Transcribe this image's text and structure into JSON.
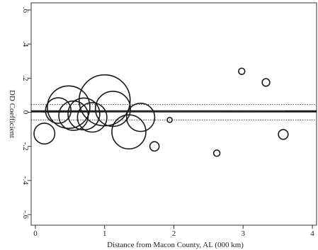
{
  "chart_data": {
    "type": "scatter",
    "title": "",
    "xlabel": "Distance from Macon County, AL (000 km)",
    "ylabel": "DD Coefficient",
    "xlim": [
      0,
      4
    ],
    "ylim": [
      -0.6,
      0.6
    ],
    "x_ticks": [
      "0",
      "1",
      "2",
      "3",
      "4"
    ],
    "x_tick_values": [
      0,
      1,
      2,
      3,
      4
    ],
    "y_ticks": [
      "-.6",
      "-.4",
      "-.2",
      "0",
      ".2",
      ".4",
      ".6"
    ],
    "y_tick_values": [
      -0.6,
      -0.4,
      -0.2,
      0,
      0.2,
      0.4,
      0.6
    ],
    "grid": false,
    "legend": "none",
    "marker_size_note": "circle area proportional to weight",
    "points": [
      {
        "x": 0.13,
        "y": -0.125,
        "weight": 6
      },
      {
        "x": 0.33,
        "y": 0.01,
        "weight": 9
      },
      {
        "x": 0.48,
        "y": 0.03,
        "weight": 25
      },
      {
        "x": 0.55,
        "y": -0.02,
        "weight": 12
      },
      {
        "x": 0.7,
        "y": -0.01,
        "weight": 14
      },
      {
        "x": 0.82,
        "y": -0.03,
        "weight": 12
      },
      {
        "x": 1.0,
        "y": 0.07,
        "weight": 36
      },
      {
        "x": 1.12,
        "y": 0.02,
        "weight": 17
      },
      {
        "x": 1.35,
        "y": -0.115,
        "weight": 16
      },
      {
        "x": 1.52,
        "y": -0.03,
        "weight": 11
      },
      {
        "x": 1.72,
        "y": -0.2,
        "weight": 1.2
      },
      {
        "x": 1.94,
        "y": -0.045,
        "weight": 0.35
      },
      {
        "x": 2.62,
        "y": -0.24,
        "weight": 0.55
      },
      {
        "x": 2.98,
        "y": 0.24,
        "weight": 0.55
      },
      {
        "x": 3.33,
        "y": 0.175,
        "weight": 0.8
      },
      {
        "x": 3.58,
        "y": -0.13,
        "weight": 1.3
      }
    ],
    "reference_lines": {
      "estimate": 0.005,
      "ci_upper": 0.045,
      "ci_lower": -0.045
    },
    "fit_line": {
      "x0": 0.1,
      "y0": 0.0,
      "x1": 3.6,
      "y1": 0.008
    }
  }
}
